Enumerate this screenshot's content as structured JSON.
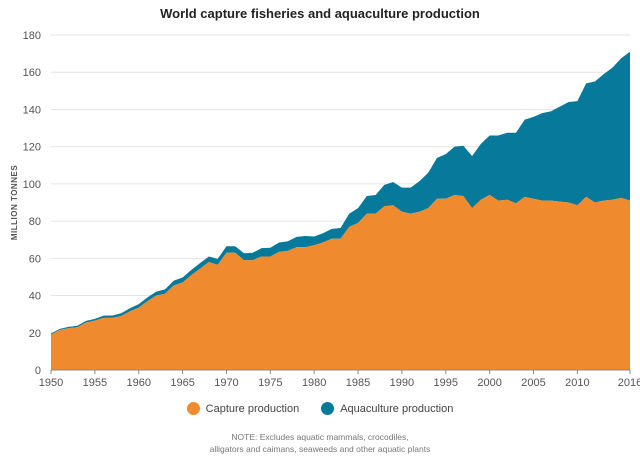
{
  "colors": {
    "capture": "#ef8a2e",
    "aquaculture": "#07799a",
    "grid": "#e4e4e4",
    "axis": "#888888"
  },
  "chart_data": {
    "type": "area",
    "stacked": true,
    "title": "World capture fisheries and aquaculture production",
    "ylabel": "MILLION TONNES",
    "xlabel": "",
    "xlim": [
      1950,
      2016
    ],
    "ylim": [
      0,
      180
    ],
    "x_ticks": [
      "1950",
      "1955",
      "1960",
      "1965",
      "1970",
      "1975",
      "1980",
      "1985",
      "1990",
      "1995",
      "2000",
      "2005",
      "2010",
      "2016"
    ],
    "y_ticks": [
      "0",
      "20",
      "40",
      "60",
      "80",
      "100",
      "120",
      "140",
      "160",
      "180"
    ],
    "grid": true,
    "legend_position": "bottom",
    "x": [
      1950,
      1951,
      1952,
      1953,
      1954,
      1955,
      1956,
      1957,
      1958,
      1959,
      1960,
      1961,
      1962,
      1963,
      1964,
      1965,
      1966,
      1967,
      1968,
      1969,
      1970,
      1971,
      1972,
      1973,
      1974,
      1975,
      1976,
      1977,
      1978,
      1979,
      1980,
      1981,
      1982,
      1983,
      1984,
      1985,
      1986,
      1987,
      1988,
      1989,
      1990,
      1991,
      1992,
      1993,
      1994,
      1995,
      1996,
      1997,
      1998,
      1999,
      2000,
      2001,
      2002,
      2003,
      2004,
      2005,
      2006,
      2007,
      2008,
      2009,
      2010,
      2011,
      2012,
      2013,
      2014,
      2015,
      2016
    ],
    "series": [
      {
        "name": "Capture production",
        "values": [
          19,
          21.5,
          22.5,
          23,
          25.5,
          26.5,
          28,
          28,
          29,
          31.5,
          33.5,
          37,
          40,
          41,
          45.5,
          47,
          51,
          54.5,
          58,
          56.5,
          63,
          63,
          59,
          59,
          61,
          61,
          63.5,
          64,
          66,
          66,
          67,
          68.5,
          70.5,
          70.5,
          77,
          79,
          84,
          84,
          88,
          88.5,
          85,
          84,
          85,
          87,
          92,
          92,
          94,
          93.5,
          87,
          91.5,
          94,
          91,
          91.5,
          89.5,
          93,
          92,
          91,
          91,
          90.5,
          90,
          88.5,
          93,
          90,
          91,
          91.5,
          92.5,
          91
        ]
      },
      {
        "name": "Aquaculture production",
        "values": [
          0.6,
          0.6,
          0.7,
          0.8,
          0.9,
          1,
          1.2,
          1.3,
          1.5,
          1.7,
          1.9,
          2,
          2.1,
          2.3,
          2.5,
          2.7,
          2.8,
          3,
          3,
          3.2,
          3.5,
          3.5,
          3.7,
          4,
          4.5,
          4.7,
          5,
          5.2,
          5.5,
          6,
          4.7,
          5,
          5.3,
          5.8,
          7,
          8,
          9.5,
          10,
          11.5,
          12.5,
          13,
          14,
          16.5,
          19,
          22,
          24,
          26,
          27,
          28,
          30,
          32,
          35,
          36,
          38,
          41.5,
          44,
          47,
          48,
          51,
          54,
          56,
          61,
          65,
          68,
          71,
          75,
          80
        ]
      }
    ]
  },
  "legend": {
    "capture": "Capture production",
    "aquaculture": "Aquaculture production"
  },
  "note": {
    "line1": "NOTE: Excludes aquatic mammals, crocodiles,",
    "line2": "alligators and caimans, seaweeds and other aquatic plants"
  }
}
